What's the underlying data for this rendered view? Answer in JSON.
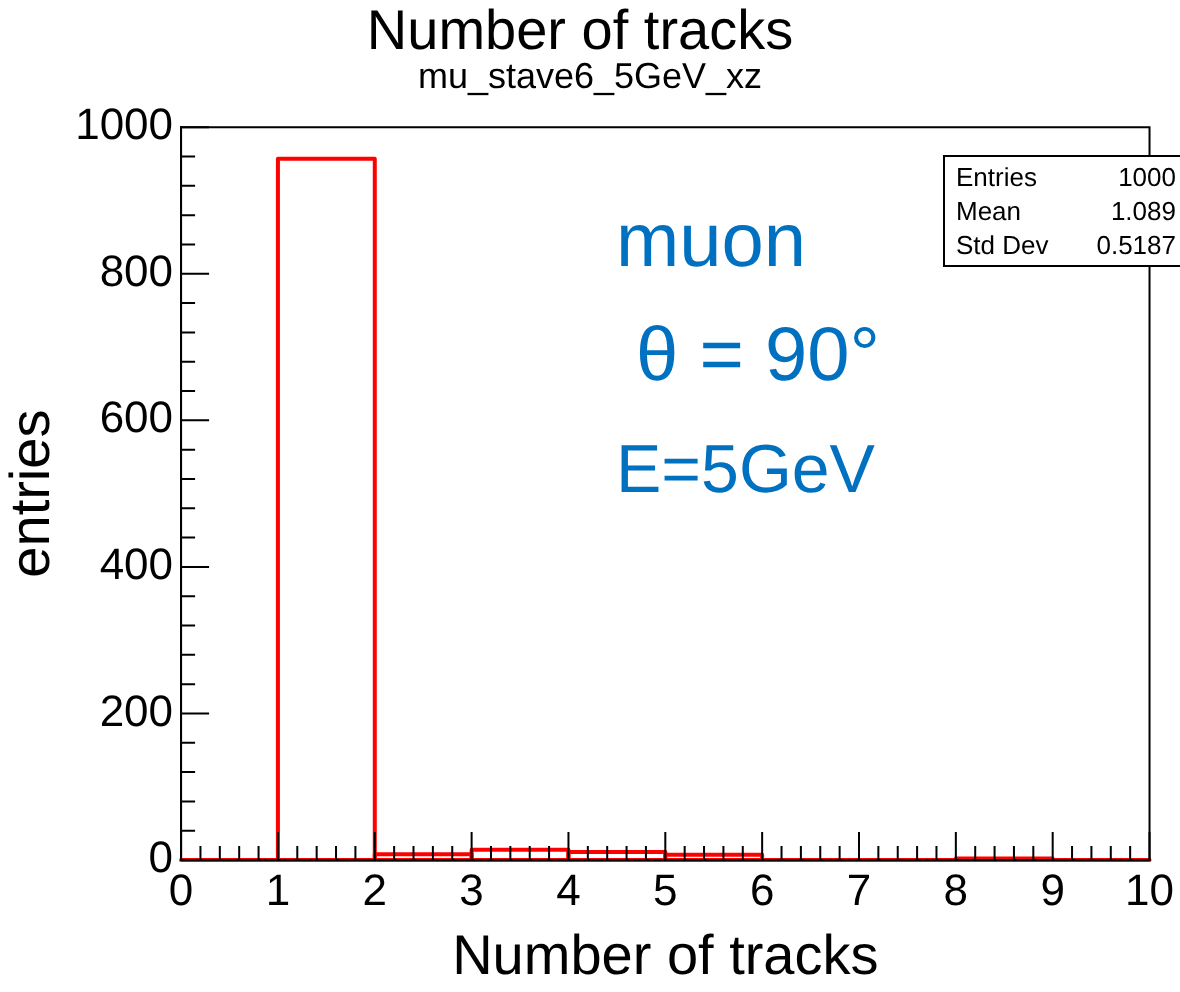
{
  "chart_data": {
    "type": "histogram",
    "title": "Number of tracks",
    "subtitle": "mu_stave6_5GeV_xz",
    "xlabel": "Number of tracks",
    "ylabel": "entries",
    "bins": [
      0,
      1,
      2,
      3,
      4,
      5,
      6,
      7,
      8,
      9,
      10
    ],
    "values": [
      0,
      957,
      8,
      14,
      11,
      7,
      0,
      0,
      2,
      0
    ],
    "color": "#ff0000",
    "xlim": [
      0,
      10
    ],
    "xticks": [
      0,
      1,
      2,
      3,
      4,
      5,
      6,
      7,
      8,
      9,
      10
    ],
    "ylim": [
      0,
      1000
    ],
    "yticks": [
      0,
      200,
      400,
      600,
      800,
      1000
    ],
    "grid": false,
    "legend": false,
    "annotations": [
      "muon",
      "θ = 90°",
      "E=5GeV",
      "Entries 1000",
      "Mean 1.089",
      "Std Dev 0.5187"
    ]
  }
}
